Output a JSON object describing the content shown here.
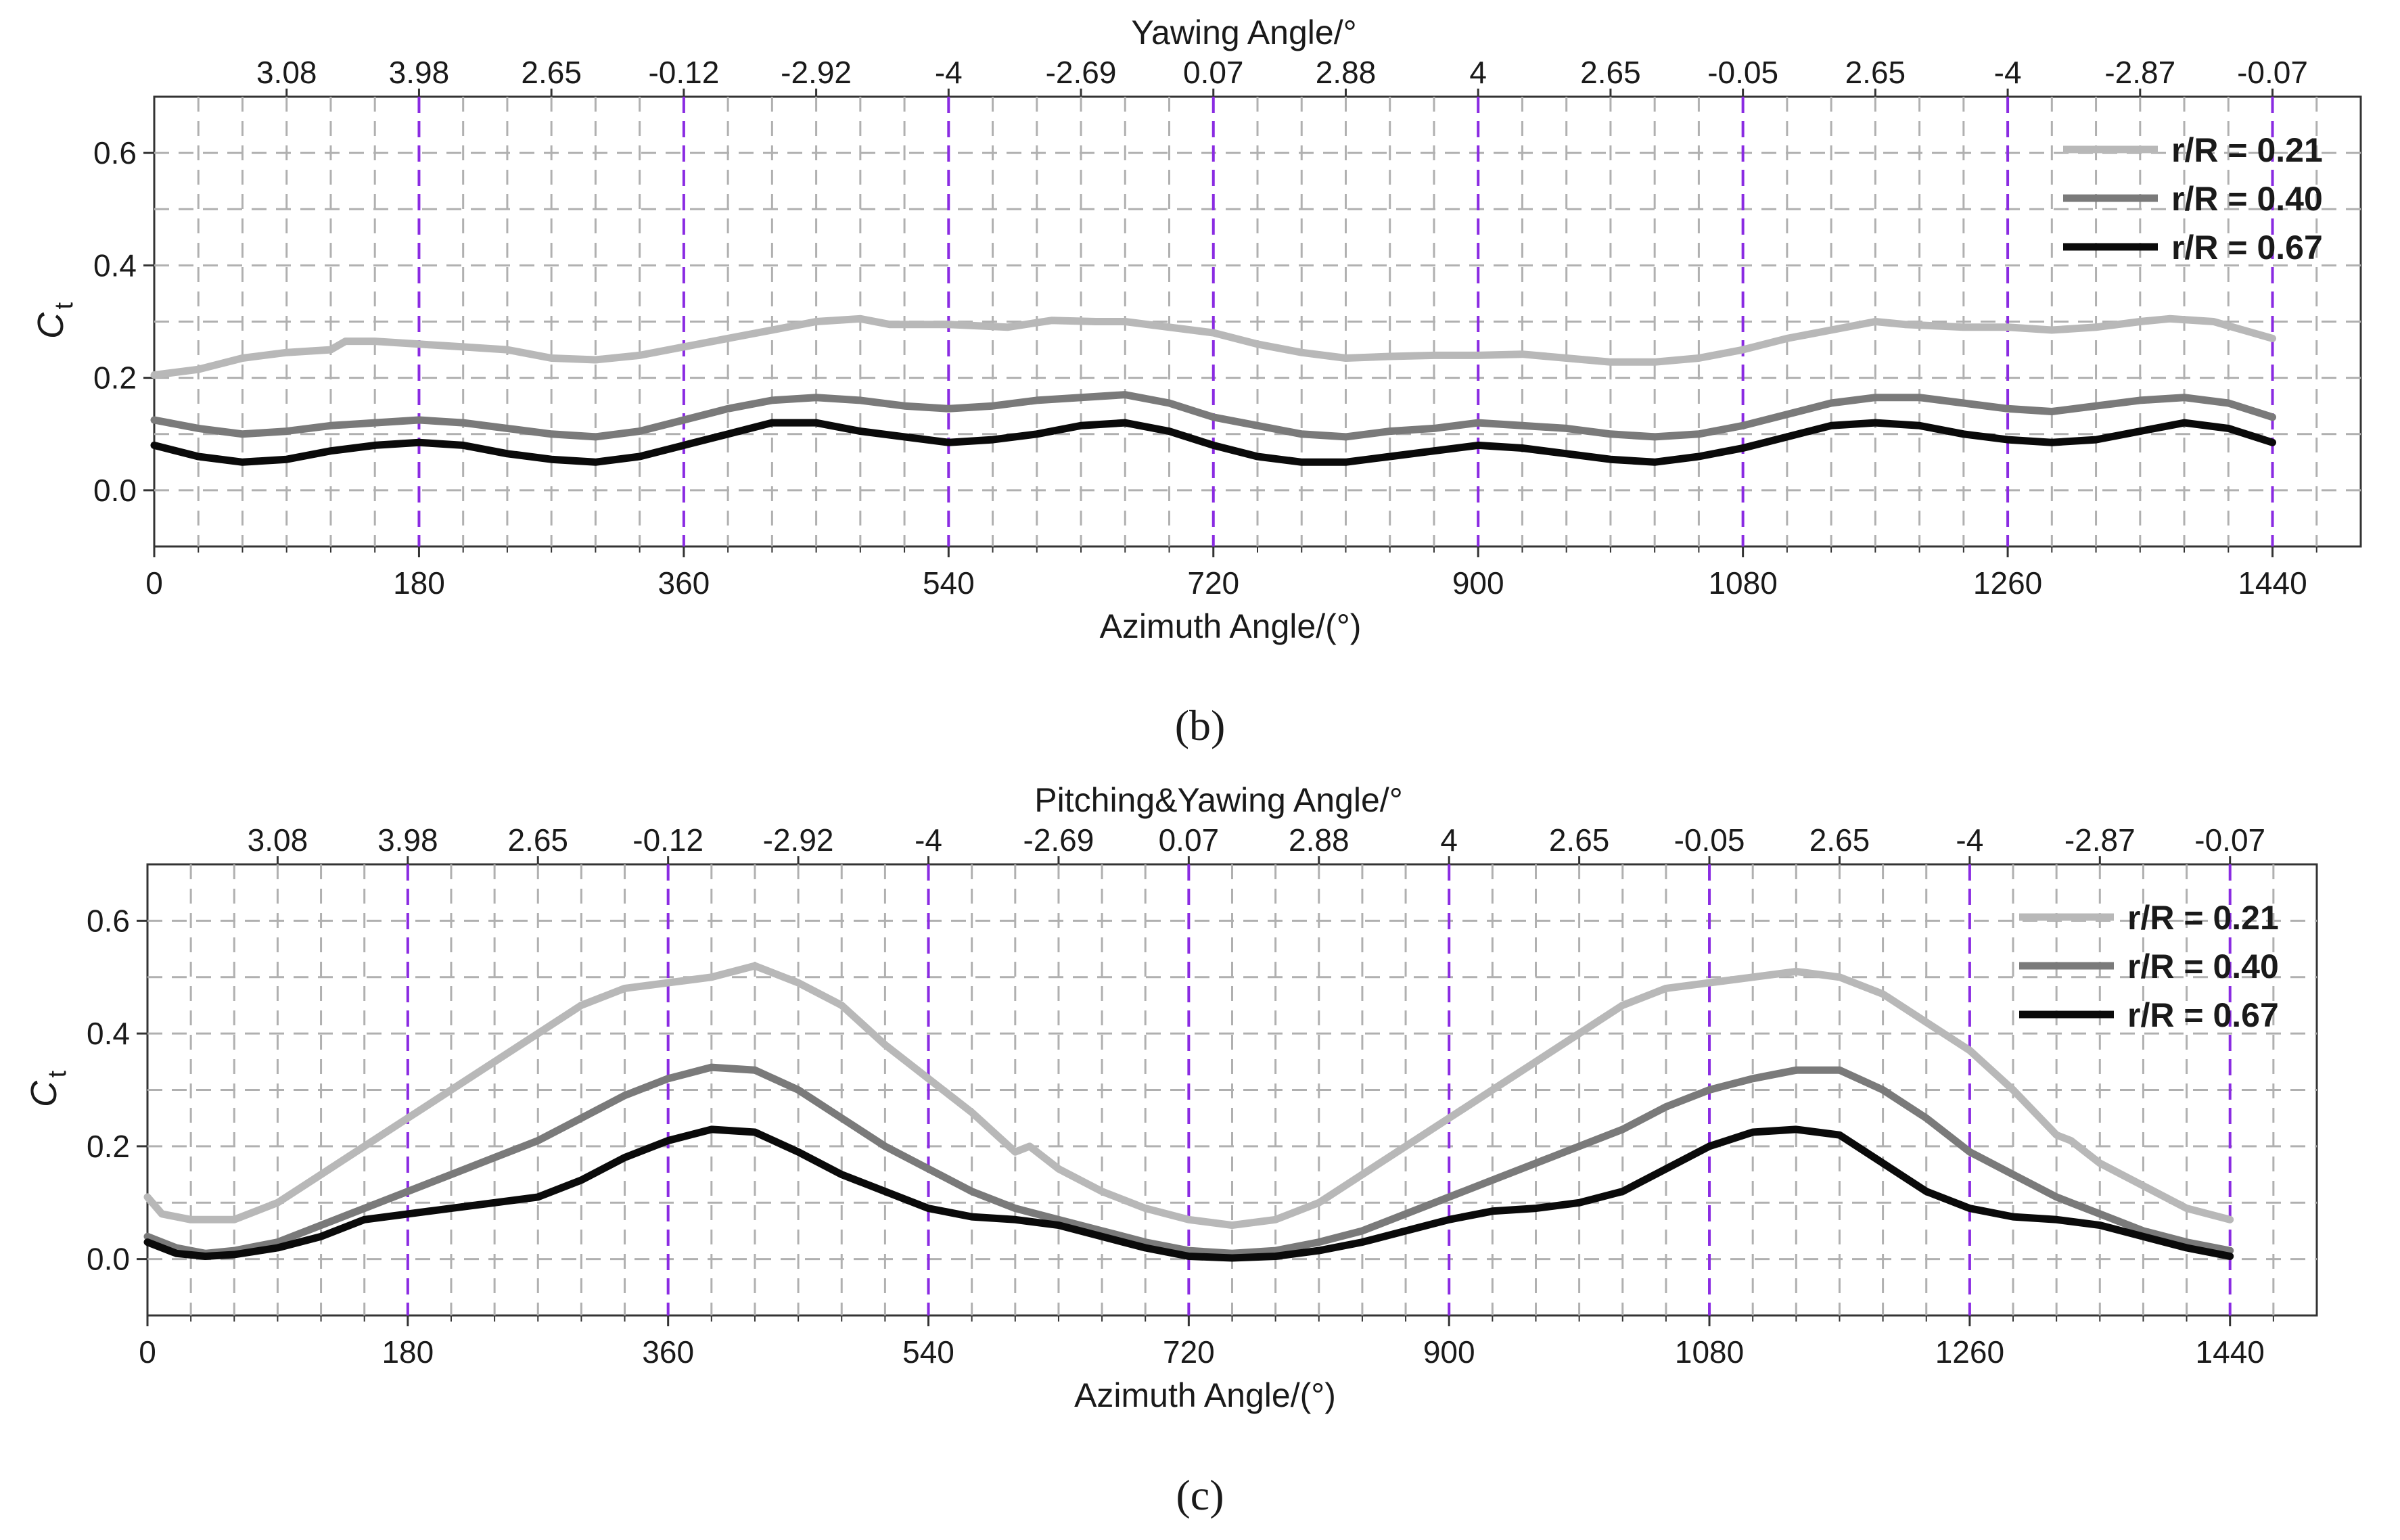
{
  "chart_data": [
    {
      "panel_label": "b",
      "type": "line",
      "title": "",
      "top_axis_title": "Yawing Angle/°",
      "top_tick_labels": [
        "3.08",
        "3.98",
        "2.65",
        "-0.12",
        "-2.92",
        "-4",
        "-2.69",
        "0.07",
        "2.88",
        "4",
        "2.65",
        "-0.05",
        "2.65",
        "-4",
        "-2.87",
        "-0.07"
      ],
      "top_tick_positions": [
        90,
        180,
        270,
        360,
        450,
        540,
        630,
        720,
        810,
        900,
        990,
        1080,
        1170,
        1260,
        1350,
        1440
      ],
      "xlabel": "Azimuth Angle/(°)",
      "ylabel": "C",
      "ylabel_subscript": "t",
      "xlim": [
        0,
        1500
      ],
      "ylim": [
        -0.1,
        0.7
      ],
      "x_ticks": [
        "0",
        "180",
        "360",
        "540",
        "720",
        "900",
        "1080",
        "1260",
        "1440"
      ],
      "x_tick_values": [
        0,
        180,
        360,
        540,
        720,
        900,
        1080,
        1260,
        1440
      ],
      "y_ticks": [
        "0.0",
        "0.2",
        "0.4",
        "0.6"
      ],
      "y_tick_values": [
        0,
        0.2,
        0.4,
        0.6
      ],
      "grid": true,
      "reference_lines_x": [
        180,
        360,
        540,
        720,
        900,
        1080,
        1260,
        1440
      ],
      "legend_position": "top-right",
      "series": [
        {
          "name": "r/R = 0.21",
          "color": "#b8b8b8",
          "x": [
            0,
            30,
            60,
            90,
            120,
            130,
            150,
            180,
            210,
            240,
            270,
            300,
            330,
            360,
            390,
            420,
            450,
            480,
            500,
            540,
            580,
            610,
            640,
            660,
            690,
            720,
            750,
            780,
            810,
            840,
            870,
            900,
            930,
            960,
            990,
            1020,
            1050,
            1080,
            1110,
            1140,
            1170,
            1190,
            1230,
            1260,
            1290,
            1320,
            1350,
            1370,
            1400,
            1420,
            1440
          ],
          "values": [
            0.205,
            0.215,
            0.235,
            0.245,
            0.25,
            0.265,
            0.265,
            0.26,
            0.255,
            0.25,
            0.235,
            0.232,
            0.24,
            0.255,
            0.27,
            0.285,
            0.3,
            0.305,
            0.295,
            0.295,
            0.29,
            0.302,
            0.3,
            0.3,
            0.29,
            0.28,
            0.26,
            0.245,
            0.235,
            0.238,
            0.24,
            0.24,
            0.242,
            0.235,
            0.228,
            0.228,
            0.235,
            0.25,
            0.27,
            0.285,
            0.3,
            0.295,
            0.29,
            0.29,
            0.285,
            0.29,
            0.3,
            0.305,
            0.3,
            0.285,
            0.27
          ]
        },
        {
          "name": "r/R = 0.40",
          "color": "#7a7a7a",
          "x": [
            0,
            30,
            60,
            90,
            120,
            150,
            180,
            210,
            240,
            270,
            300,
            330,
            360,
            390,
            420,
            450,
            480,
            510,
            540,
            570,
            600,
            630,
            660,
            690,
            720,
            750,
            780,
            810,
            840,
            870,
            900,
            930,
            960,
            990,
            1020,
            1050,
            1080,
            1110,
            1140,
            1170,
            1200,
            1230,
            1260,
            1290,
            1320,
            1350,
            1380,
            1410,
            1440
          ],
          "values": [
            0.125,
            0.11,
            0.1,
            0.105,
            0.115,
            0.12,
            0.125,
            0.12,
            0.11,
            0.1,
            0.095,
            0.105,
            0.125,
            0.145,
            0.16,
            0.165,
            0.16,
            0.15,
            0.145,
            0.15,
            0.16,
            0.165,
            0.17,
            0.155,
            0.13,
            0.115,
            0.1,
            0.095,
            0.105,
            0.11,
            0.12,
            0.115,
            0.11,
            0.1,
            0.095,
            0.1,
            0.115,
            0.135,
            0.155,
            0.165,
            0.165,
            0.155,
            0.145,
            0.14,
            0.15,
            0.16,
            0.165,
            0.155,
            0.13
          ]
        },
        {
          "name": "r/R = 0.67",
          "color": "#0a0a0a",
          "x": [
            0,
            30,
            60,
            90,
            120,
            150,
            180,
            210,
            240,
            270,
            300,
            330,
            360,
            390,
            420,
            450,
            480,
            510,
            540,
            570,
            600,
            630,
            660,
            690,
            720,
            750,
            780,
            810,
            840,
            870,
            900,
            930,
            960,
            990,
            1020,
            1050,
            1080,
            1110,
            1140,
            1170,
            1200,
            1230,
            1260,
            1290,
            1320,
            1350,
            1380,
            1410,
            1440
          ],
          "values": [
            0.08,
            0.06,
            0.05,
            0.055,
            0.07,
            0.08,
            0.085,
            0.08,
            0.065,
            0.055,
            0.05,
            0.06,
            0.08,
            0.1,
            0.12,
            0.12,
            0.105,
            0.095,
            0.085,
            0.09,
            0.1,
            0.115,
            0.12,
            0.105,
            0.08,
            0.06,
            0.05,
            0.05,
            0.06,
            0.07,
            0.08,
            0.075,
            0.065,
            0.055,
            0.05,
            0.06,
            0.075,
            0.095,
            0.115,
            0.12,
            0.115,
            0.1,
            0.09,
            0.085,
            0.09,
            0.105,
            0.12,
            0.11,
            0.085
          ]
        }
      ]
    },
    {
      "panel_label": "c",
      "type": "line",
      "title": "",
      "top_axis_title": "Pitching&Yawing Angle/°",
      "top_tick_labels": [
        "3.08",
        "3.98",
        "2.65",
        "-0.12",
        "-2.92",
        "-4",
        "-2.69",
        "0.07",
        "2.88",
        "4",
        "2.65",
        "-0.05",
        "2.65",
        "-4",
        "-2.87",
        "-0.07"
      ],
      "top_tick_positions": [
        90,
        180,
        270,
        360,
        450,
        540,
        630,
        720,
        810,
        900,
        990,
        1080,
        1170,
        1260,
        1350,
        1440
      ],
      "xlabel": "Azimuth Angle/(°)",
      "ylabel": "C",
      "ylabel_subscript": "t",
      "xlim": [
        0,
        1500
      ],
      "ylim": [
        -0.1,
        0.7
      ],
      "x_ticks": [
        "0",
        "180",
        "360",
        "540",
        "720",
        "900",
        "1080",
        "1260",
        "1440"
      ],
      "x_tick_values": [
        0,
        180,
        360,
        540,
        720,
        900,
        1080,
        1260,
        1440
      ],
      "y_ticks": [
        "0.0",
        "0.2",
        "0.4",
        "0.6"
      ],
      "y_tick_values": [
        0,
        0.2,
        0.4,
        0.6
      ],
      "grid": true,
      "reference_lines_x": [
        180,
        360,
        540,
        720,
        900,
        1080,
        1260,
        1440
      ],
      "legend_position": "top-right",
      "series": [
        {
          "name": "r/R = 0.21",
          "color": "#b8b8b8",
          "x": [
            0,
            10,
            30,
            60,
            90,
            120,
            150,
            180,
            210,
            240,
            270,
            300,
            330,
            360,
            390,
            420,
            450,
            480,
            510,
            540,
            570,
            600,
            610,
            630,
            660,
            690,
            720,
            750,
            780,
            810,
            840,
            870,
            900,
            930,
            960,
            990,
            1020,
            1050,
            1080,
            1110,
            1140,
            1170,
            1200,
            1230,
            1260,
            1290,
            1320,
            1330,
            1350,
            1380,
            1410,
            1440
          ],
          "values": [
            0.11,
            0.08,
            0.07,
            0.07,
            0.1,
            0.15,
            0.2,
            0.25,
            0.3,
            0.35,
            0.4,
            0.45,
            0.48,
            0.49,
            0.5,
            0.52,
            0.49,
            0.45,
            0.38,
            0.32,
            0.26,
            0.19,
            0.2,
            0.16,
            0.12,
            0.09,
            0.07,
            0.06,
            0.07,
            0.1,
            0.15,
            0.2,
            0.25,
            0.3,
            0.35,
            0.4,
            0.45,
            0.48,
            0.49,
            0.5,
            0.51,
            0.5,
            0.47,
            0.42,
            0.37,
            0.3,
            0.22,
            0.21,
            0.17,
            0.13,
            0.09,
            0.07
          ]
        },
        {
          "name": "r/R = 0.40",
          "color": "#7a7a7a",
          "x": [
            0,
            20,
            40,
            60,
            90,
            120,
            150,
            180,
            210,
            240,
            270,
            300,
            330,
            360,
            390,
            420,
            450,
            480,
            510,
            540,
            570,
            600,
            630,
            660,
            690,
            720,
            750,
            780,
            810,
            840,
            870,
            900,
            930,
            960,
            990,
            1020,
            1050,
            1080,
            1110,
            1140,
            1170,
            1200,
            1230,
            1260,
            1290,
            1320,
            1350,
            1380,
            1410,
            1440
          ],
          "values": [
            0.04,
            0.02,
            0.01,
            0.015,
            0.03,
            0.06,
            0.09,
            0.12,
            0.15,
            0.18,
            0.21,
            0.25,
            0.29,
            0.32,
            0.34,
            0.335,
            0.3,
            0.25,
            0.2,
            0.16,
            0.12,
            0.09,
            0.07,
            0.05,
            0.03,
            0.015,
            0.01,
            0.015,
            0.03,
            0.05,
            0.08,
            0.11,
            0.14,
            0.17,
            0.2,
            0.23,
            0.27,
            0.3,
            0.32,
            0.335,
            0.335,
            0.3,
            0.25,
            0.19,
            0.15,
            0.11,
            0.08,
            0.05,
            0.03,
            0.015
          ]
        },
        {
          "name": "r/R = 0.67",
          "color": "#0a0a0a",
          "x": [
            0,
            20,
            40,
            60,
            90,
            120,
            150,
            180,
            210,
            240,
            270,
            300,
            330,
            360,
            390,
            420,
            450,
            480,
            510,
            540,
            570,
            600,
            630,
            660,
            690,
            720,
            750,
            780,
            810,
            840,
            870,
            900,
            930,
            960,
            990,
            1020,
            1050,
            1080,
            1110,
            1140,
            1170,
            1200,
            1230,
            1260,
            1290,
            1320,
            1350,
            1380,
            1410,
            1440
          ],
          "values": [
            0.03,
            0.01,
            0.005,
            0.008,
            0.02,
            0.04,
            0.07,
            0.08,
            0.09,
            0.1,
            0.11,
            0.14,
            0.18,
            0.21,
            0.23,
            0.225,
            0.19,
            0.15,
            0.12,
            0.09,
            0.075,
            0.07,
            0.06,
            0.04,
            0.02,
            0.005,
            0.002,
            0.005,
            0.015,
            0.03,
            0.05,
            0.07,
            0.085,
            0.09,
            0.1,
            0.12,
            0.16,
            0.2,
            0.225,
            0.23,
            0.22,
            0.17,
            0.12,
            0.09,
            0.075,
            0.07,
            0.06,
            0.04,
            0.02,
            0.005
          ]
        }
      ]
    }
  ],
  "captions": {
    "panel_b": "(b)",
    "panel_c": "(c)"
  }
}
